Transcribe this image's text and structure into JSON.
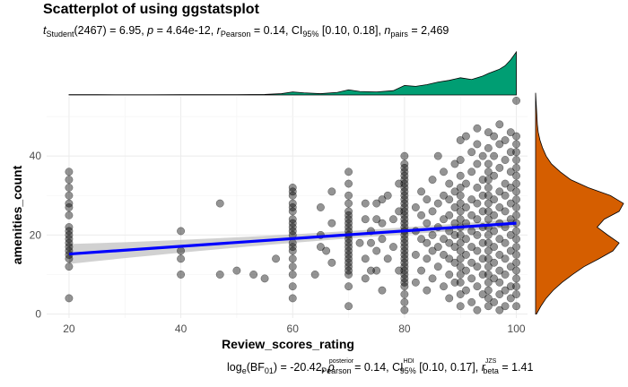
{
  "chart_data": {
    "type": "scatter",
    "title": "Scatterplot of using ggstatsplot",
    "subtitle": {
      "t_symbol": "t",
      "t_sub": "Student",
      "t_df": "(2467) = 6.95, ",
      "p_symbol": "p",
      "p_value": " = 4.64e-12, ",
      "r_symbol": "r",
      "r_sub": "Pearson",
      "r_value": " = 0.14, CI",
      "ci_sub": "95%",
      "ci_value": " [0.10, 0.18], ",
      "n_symbol": "n",
      "n_sub": "pairs",
      "n_value": " = 2,469"
    },
    "caption": {
      "log_prefix": "log",
      "log_sub": "e",
      "bf_text": "(BF",
      "bf_sub": "01",
      "bf_value": ") = -20.42, ",
      "rho_symbol": "ρ",
      "rho_sup": "posterior",
      "rho_sub": "Pearson",
      "rho_value": " = 0.14, CI",
      "ci_sup": "HDI",
      "ci_sub": "95%",
      "ci_value": " [0.10, 0.17], ",
      "r_symbol": "r",
      "r_sup": "JZS",
      "r_sub": "beta",
      "r_value": " = 1.41"
    },
    "xlabel": "Review_scores_rating",
    "ylabel": "amenities_count",
    "xlim": [
      16,
      102
    ],
    "ylim": [
      -1,
      55
    ],
    "x_ticks": [
      20,
      40,
      60,
      80,
      100
    ],
    "y_ticks": [
      0,
      20,
      40
    ],
    "grid": true,
    "regression": {
      "x0": 20,
      "y0": 15.2,
      "x1": 100,
      "y1": 23.0,
      "se": 0.9
    },
    "points": [
      [
        20,
        4
      ],
      [
        20,
        12
      ],
      [
        20,
        14
      ],
      [
        20,
        15
      ],
      [
        20,
        16
      ],
      [
        20,
        17
      ],
      [
        20,
        18
      ],
      [
        20,
        19
      ],
      [
        20,
        20
      ],
      [
        20,
        21
      ],
      [
        20,
        22
      ],
      [
        20,
        25
      ],
      [
        20,
        27
      ],
      [
        20,
        28
      ],
      [
        20,
        30
      ],
      [
        20,
        32
      ],
      [
        20,
        34
      ],
      [
        20,
        36
      ],
      [
        40,
        10
      ],
      [
        40,
        14
      ],
      [
        40,
        16
      ],
      [
        40,
        21
      ],
      [
        47,
        10
      ],
      [
        47,
        28
      ],
      [
        50,
        11
      ],
      [
        53,
        10
      ],
      [
        55,
        9
      ],
      [
        57,
        14
      ],
      [
        60,
        4
      ],
      [
        60,
        7
      ],
      [
        60,
        10
      ],
      [
        60,
        12
      ],
      [
        60,
        14
      ],
      [
        60,
        16
      ],
      [
        60,
        17
      ],
      [
        60,
        18
      ],
      [
        60,
        20
      ],
      [
        60,
        21
      ],
      [
        60,
        22
      ],
      [
        60,
        23
      ],
      [
        60,
        24
      ],
      [
        60,
        26
      ],
      [
        60,
        27
      ],
      [
        60,
        28
      ],
      [
        60,
        30
      ],
      [
        60,
        31
      ],
      [
        60,
        32
      ],
      [
        64,
        10
      ],
      [
        65,
        17
      ],
      [
        65,
        20
      ],
      [
        65,
        27
      ],
      [
        66,
        16
      ],
      [
        67,
        13
      ],
      [
        67,
        23
      ],
      [
        67,
        31
      ],
      [
        70,
        2
      ],
      [
        70,
        7
      ],
      [
        70,
        10
      ],
      [
        70,
        11
      ],
      [
        70,
        12
      ],
      [
        70,
        13
      ],
      [
        70,
        14
      ],
      [
        70,
        15
      ],
      [
        70,
        16
      ],
      [
        70,
        17
      ],
      [
        70,
        18
      ],
      [
        70,
        19
      ],
      [
        70,
        20
      ],
      [
        70,
        21
      ],
      [
        70,
        22
      ],
      [
        70,
        23
      ],
      [
        70,
        24
      ],
      [
        70,
        25
      ],
      [
        70,
        26
      ],
      [
        70,
        28
      ],
      [
        70,
        30
      ],
      [
        70,
        33
      ],
      [
        70,
        36
      ],
      [
        72,
        18
      ],
      [
        73,
        9
      ],
      [
        73,
        14
      ],
      [
        73,
        24
      ],
      [
        73,
        28
      ],
      [
        74,
        11
      ],
      [
        74,
        18
      ],
      [
        74,
        21
      ],
      [
        75,
        11
      ],
      [
        75,
        16
      ],
      [
        75,
        24
      ],
      [
        75,
        28
      ],
      [
        76,
        6
      ],
      [
        76,
        19
      ],
      [
        76,
        23
      ],
      [
        76,
        29
      ],
      [
        77,
        14
      ],
      [
        77,
        30
      ],
      [
        78,
        17
      ],
      [
        78,
        24
      ],
      [
        79,
        11
      ],
      [
        79,
        26
      ],
      [
        79,
        33
      ],
      [
        80,
        1
      ],
      [
        80,
        3
      ],
      [
        80,
        5
      ],
      [
        80,
        7
      ],
      [
        80,
        8
      ],
      [
        80,
        9
      ],
      [
        80,
        10
      ],
      [
        80,
        11
      ],
      [
        80,
        12
      ],
      [
        80,
        13
      ],
      [
        80,
        14
      ],
      [
        80,
        15
      ],
      [
        80,
        16
      ],
      [
        80,
        17
      ],
      [
        80,
        18
      ],
      [
        80,
        19
      ],
      [
        80,
        20
      ],
      [
        80,
        21
      ],
      [
        80,
        22
      ],
      [
        80,
        23
      ],
      [
        80,
        24
      ],
      [
        80,
        25
      ],
      [
        80,
        26
      ],
      [
        80,
        27
      ],
      [
        80,
        28
      ],
      [
        80,
        29
      ],
      [
        80,
        30
      ],
      [
        80,
        31
      ],
      [
        80,
        32
      ],
      [
        80,
        33
      ],
      [
        80,
        34
      ],
      [
        80,
        35
      ],
      [
        80,
        36
      ],
      [
        80,
        37
      ],
      [
        80,
        38
      ],
      [
        80,
        40
      ],
      [
        82,
        8
      ],
      [
        82,
        15
      ],
      [
        82,
        21
      ],
      [
        82,
        27
      ],
      [
        83,
        11
      ],
      [
        83,
        19
      ],
      [
        83,
        25
      ],
      [
        83,
        31
      ],
      [
        84,
        6
      ],
      [
        84,
        14
      ],
      [
        84,
        18
      ],
      [
        84,
        23
      ],
      [
        84,
        29
      ],
      [
        85,
        9
      ],
      [
        85,
        16
      ],
      [
        85,
        20
      ],
      [
        85,
        26
      ],
      [
        85,
        34
      ],
      [
        86,
        12
      ],
      [
        86,
        17
      ],
      [
        86,
        22
      ],
      [
        86,
        28
      ],
      [
        86,
        40
      ],
      [
        87,
        7
      ],
      [
        87,
        15
      ],
      [
        87,
        19
      ],
      [
        87,
        24
      ],
      [
        87,
        30
      ],
      [
        87,
        36
      ],
      [
        88,
        4
      ],
      [
        88,
        10
      ],
      [
        88,
        14
      ],
      [
        88,
        18
      ],
      [
        88,
        21
      ],
      [
        88,
        25
      ],
      [
        88,
        29
      ],
      [
        88,
        33
      ],
      [
        89,
        8
      ],
      [
        89,
        13
      ],
      [
        89,
        17
      ],
      [
        89,
        20
      ],
      [
        89,
        23
      ],
      [
        89,
        27
      ],
      [
        89,
        31
      ],
      [
        89,
        38
      ],
      [
        90,
        2
      ],
      [
        90,
        5
      ],
      [
        90,
        8
      ],
      [
        90,
        10
      ],
      [
        90,
        12
      ],
      [
        90,
        14
      ],
      [
        90,
        16
      ],
      [
        90,
        18
      ],
      [
        90,
        20
      ],
      [
        90,
        22
      ],
      [
        90,
        24
      ],
      [
        90,
        26
      ],
      [
        90,
        28
      ],
      [
        90,
        30
      ],
      [
        90,
        32
      ],
      [
        90,
        35
      ],
      [
        90,
        39
      ],
      [
        90,
        44
      ],
      [
        91,
        6
      ],
      [
        91,
        11
      ],
      [
        91,
        15
      ],
      [
        91,
        19
      ],
      [
        91,
        23
      ],
      [
        91,
        27
      ],
      [
        91,
        33
      ],
      [
        91,
        45
      ],
      [
        92,
        3
      ],
      [
        92,
        9
      ],
      [
        92,
        13
      ],
      [
        92,
        17
      ],
      [
        92,
        21
      ],
      [
        92,
        25
      ],
      [
        92,
        29
      ],
      [
        92,
        36
      ],
      [
        92,
        41
      ],
      [
        93,
        1
      ],
      [
        93,
        7
      ],
      [
        93,
        12
      ],
      [
        93,
        16
      ],
      [
        93,
        20
      ],
      [
        93,
        24
      ],
      [
        93,
        28
      ],
      [
        93,
        32
      ],
      [
        93,
        38
      ],
      [
        93,
        43
      ],
      [
        93,
        47
      ],
      [
        94,
        5
      ],
      [
        94,
        10
      ],
      [
        94,
        14
      ],
      [
        94,
        18
      ],
      [
        94,
        22
      ],
      [
        94,
        26
      ],
      [
        94,
        30
      ],
      [
        94,
        34
      ],
      [
        94,
        40
      ],
      [
        95,
        2
      ],
      [
        95,
        4
      ],
      [
        95,
        6
      ],
      [
        95,
        8
      ],
      [
        95,
        10
      ],
      [
        95,
        12
      ],
      [
        95,
        14
      ],
      [
        95,
        16
      ],
      [
        95,
        18
      ],
      [
        95,
        20
      ],
      [
        95,
        22
      ],
      [
        95,
        24
      ],
      [
        95,
        26
      ],
      [
        95,
        28
      ],
      [
        95,
        30
      ],
      [
        95,
        32
      ],
      [
        95,
        34
      ],
      [
        95,
        36
      ],
      [
        95,
        38
      ],
      [
        95,
        42
      ],
      [
        95,
        46
      ],
      [
        96,
        3
      ],
      [
        96,
        9
      ],
      [
        96,
        13
      ],
      [
        96,
        17
      ],
      [
        96,
        21
      ],
      [
        96,
        25
      ],
      [
        96,
        29
      ],
      [
        96,
        35
      ],
      [
        96,
        40
      ],
      [
        96,
        45
      ],
      [
        97,
        1
      ],
      [
        97,
        5
      ],
      [
        97,
        8
      ],
      [
        97,
        11
      ],
      [
        97,
        15
      ],
      [
        97,
        19
      ],
      [
        97,
        23
      ],
      [
        97,
        27
      ],
      [
        97,
        31
      ],
      [
        97,
        37
      ],
      [
        97,
        43
      ],
      [
        97,
        48
      ],
      [
        98,
        2
      ],
      [
        98,
        6
      ],
      [
        98,
        10
      ],
      [
        98,
        14
      ],
      [
        98,
        18
      ],
      [
        98,
        22
      ],
      [
        98,
        26
      ],
      [
        98,
        30
      ],
      [
        98,
        33
      ],
      [
        98,
        39
      ],
      [
        98,
        44
      ],
      [
        99,
        4
      ],
      [
        99,
        7
      ],
      [
        99,
        12
      ],
      [
        99,
        16
      ],
      [
        99,
        20
      ],
      [
        99,
        24
      ],
      [
        99,
        28
      ],
      [
        99,
        32
      ],
      [
        99,
        36
      ],
      [
        99,
        41
      ],
      [
        99,
        46
      ],
      [
        100,
        2
      ],
      [
        100,
        5
      ],
      [
        100,
        7
      ],
      [
        100,
        9
      ],
      [
        100,
        11
      ],
      [
        100,
        13
      ],
      [
        100,
        15
      ],
      [
        100,
        17
      ],
      [
        100,
        19
      ],
      [
        100,
        21
      ],
      [
        100,
        23
      ],
      [
        100,
        25
      ],
      [
        100,
        27
      ],
      [
        100,
        29
      ],
      [
        100,
        31
      ],
      [
        100,
        33
      ],
      [
        100,
        35
      ],
      [
        100,
        37
      ],
      [
        100,
        39
      ],
      [
        100,
        41
      ],
      [
        100,
        43
      ],
      [
        100,
        45
      ],
      [
        100,
        54
      ]
    ],
    "top_density": {
      "color": "#009E73",
      "x": [
        20,
        25,
        30,
        35,
        40,
        45,
        50,
        55,
        58,
        60,
        62,
        65,
        68,
        70,
        72,
        75,
        78,
        80,
        82,
        84,
        86,
        88,
        90,
        92,
        94,
        95,
        96,
        97,
        98,
        99,
        100
      ],
      "density": [
        0.008,
        0.006,
        0.005,
        0.005,
        0.006,
        0.006,
        0.007,
        0.012,
        0.03,
        0.07,
        0.05,
        0.03,
        0.06,
        0.12,
        0.08,
        0.07,
        0.1,
        0.22,
        0.2,
        0.24,
        0.3,
        0.34,
        0.4,
        0.36,
        0.44,
        0.5,
        0.55,
        0.6,
        0.68,
        0.82,
        1.0
      ]
    },
    "right_density": {
      "color": "#D55E00",
      "y": [
        0,
        2,
        4,
        6,
        8,
        10,
        12,
        14,
        16,
        18,
        20,
        22,
        24,
        26,
        28,
        30,
        32,
        34,
        36,
        38,
        40,
        42,
        44,
        46,
        48,
        50,
        52,
        54,
        56
      ],
      "density": [
        0.01,
        0.06,
        0.12,
        0.2,
        0.3,
        0.42,
        0.55,
        0.72,
        0.88,
        0.95,
        0.82,
        0.7,
        0.78,
        0.95,
        1.0,
        0.85,
        0.6,
        0.4,
        0.28,
        0.18,
        0.12,
        0.08,
        0.05,
        0.03,
        0.02,
        0.015,
        0.01,
        0.005,
        0.0
      ]
    }
  }
}
